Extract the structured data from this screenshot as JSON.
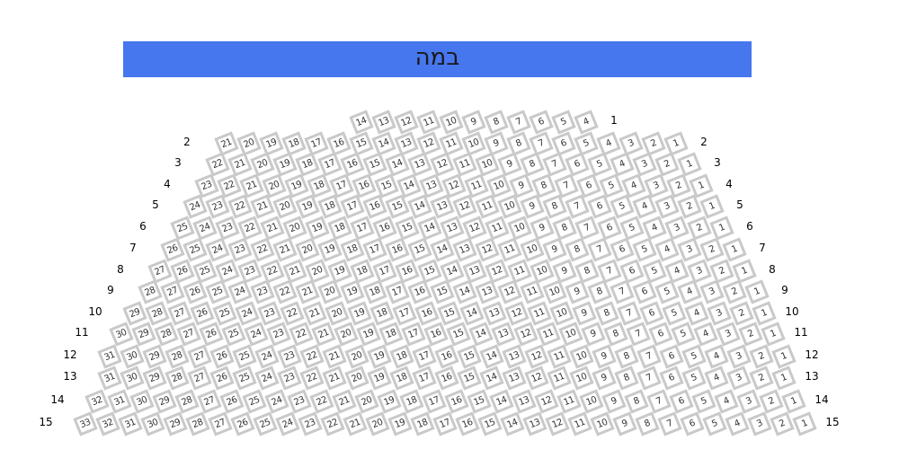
{
  "stage": {
    "label": "במה",
    "color": "#4677ee"
  },
  "seat_style": {
    "border": "#c9c9c9",
    "fill": "#ffffff",
    "text": "#333333"
  },
  "rows": [
    {
      "label": "1",
      "first_seat": 4,
      "last_seat": 14,
      "left_label": false
    },
    {
      "label": "2",
      "first_seat": 1,
      "last_seat": 21,
      "left_label": true
    },
    {
      "label": "3",
      "first_seat": 1,
      "last_seat": 22,
      "left_label": true
    },
    {
      "label": "4",
      "first_seat": 1,
      "last_seat": 23,
      "left_label": true
    },
    {
      "label": "5",
      "first_seat": 1,
      "last_seat": 24,
      "left_label": true
    },
    {
      "label": "6",
      "first_seat": 1,
      "last_seat": 25,
      "left_label": true
    },
    {
      "label": "7",
      "first_seat": 1,
      "last_seat": 26,
      "left_label": true
    },
    {
      "label": "8",
      "first_seat": 1,
      "last_seat": 27,
      "left_label": true
    },
    {
      "label": "9",
      "first_seat": 1,
      "last_seat": 28,
      "left_label": true
    },
    {
      "label": "10",
      "first_seat": 1,
      "last_seat": 29,
      "left_label": true
    },
    {
      "label": "11",
      "first_seat": 1,
      "last_seat": 30,
      "left_label": true
    },
    {
      "label": "12",
      "first_seat": 1,
      "last_seat": 31,
      "left_label": true
    },
    {
      "label": "13",
      "first_seat": 1,
      "last_seat": 31,
      "left_label": true
    },
    {
      "label": "14",
      "first_seat": 1,
      "last_seat": 32,
      "left_label": true
    },
    {
      "label": "15",
      "first_seat": 1,
      "last_seat": 33,
      "left_label": true
    }
  ]
}
